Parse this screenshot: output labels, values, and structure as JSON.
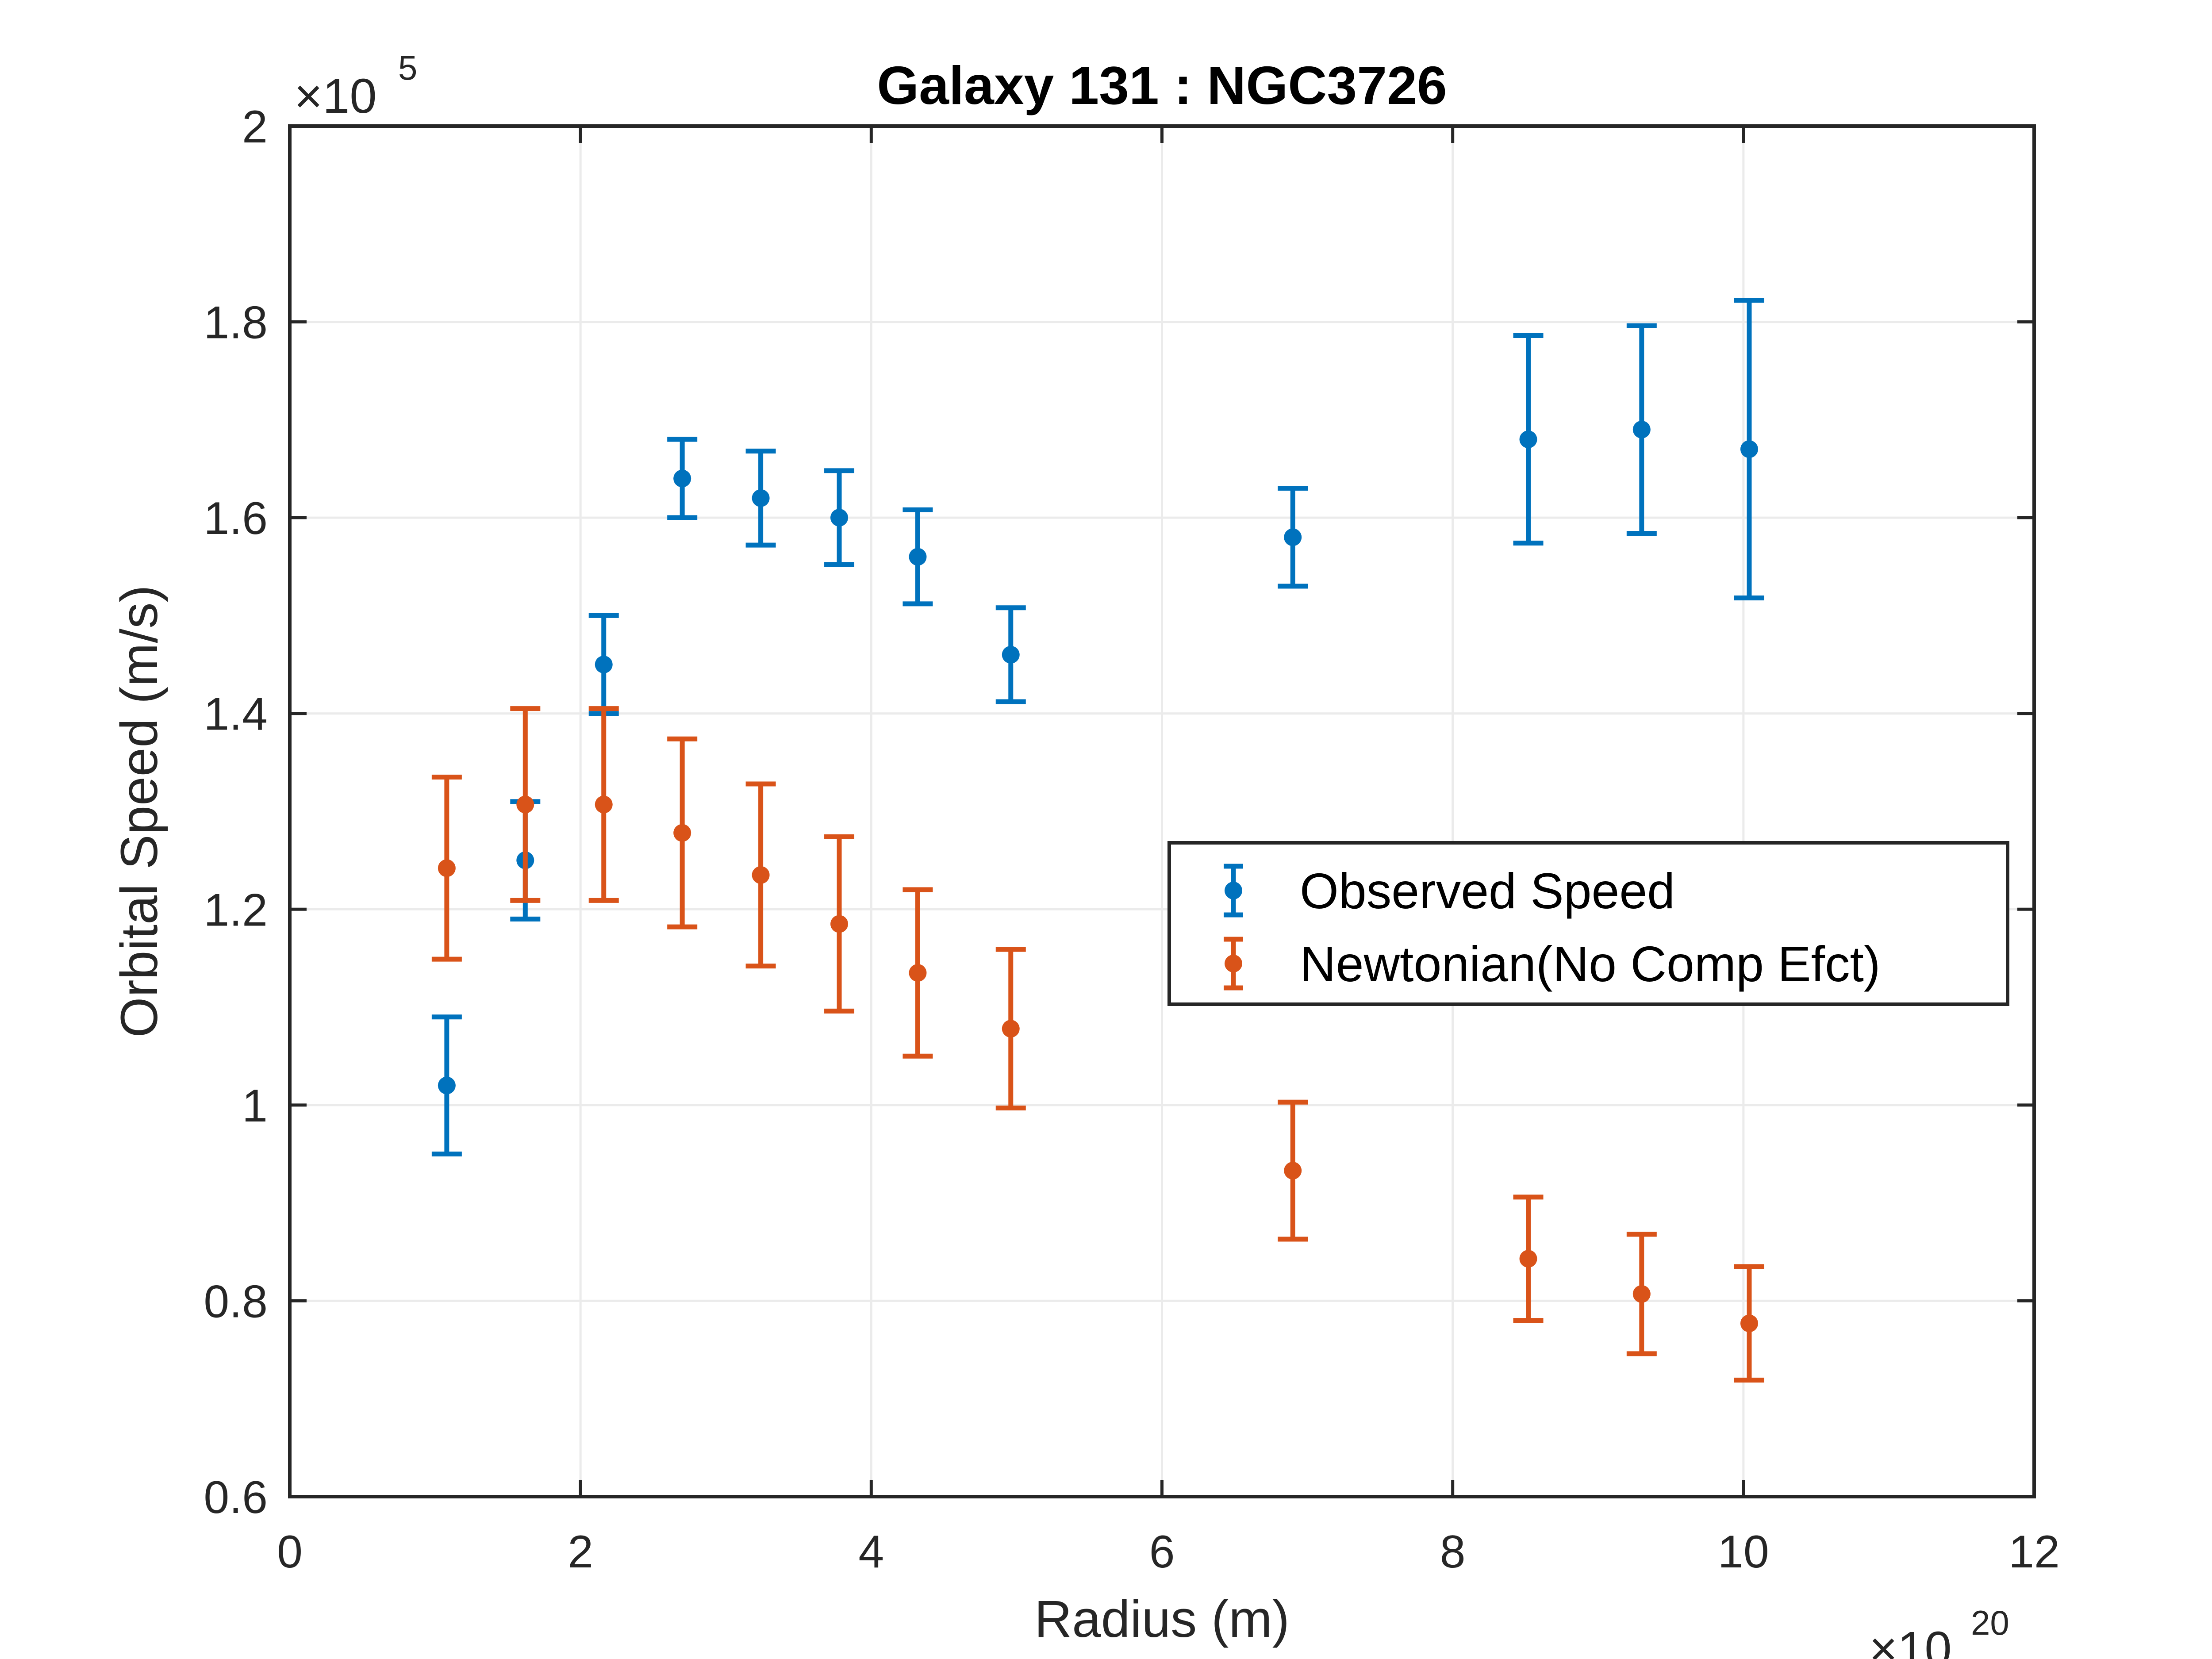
{
  "chart_data": {
    "type": "scatter",
    "title": "Galaxy 131 : NGC3726",
    "xlabel": "Radius (m)",
    "ylabel": "Orbital Speed (m/s)",
    "x_multiplier": {
      "base": "×10",
      "power": "20"
    },
    "y_multiplier": {
      "base": "×10",
      "power": "5"
    },
    "xlim": [
      0,
      12
    ],
    "ylim": [
      0.6,
      2.0
    ],
    "x_ticks": [
      0,
      2,
      4,
      6,
      8,
      10,
      12
    ],
    "x_tick_labels": [
      "0",
      "2",
      "4",
      "6",
      "8",
      "10",
      "12"
    ],
    "y_ticks": [
      0.6,
      0.8,
      1.0,
      1.2,
      1.4,
      1.6,
      1.8,
      2.0
    ],
    "y_tick_labels": [
      "0.6",
      "0.8",
      "1",
      "1.2",
      "1.4",
      "1.6",
      "1.8",
      "2"
    ],
    "grid": true,
    "legend_position": "right",
    "series": [
      {
        "name": "Observed Speed",
        "color": "#0072BD",
        "x": [
          1.08,
          1.62,
          2.16,
          2.7,
          3.24,
          3.78,
          4.32,
          4.96,
          6.9,
          8.52,
          9.3,
          10.04
        ],
        "y": [
          1.02,
          1.25,
          1.45,
          1.64,
          1.62,
          1.6,
          1.56,
          1.46,
          1.58,
          1.68,
          1.69,
          1.67
        ],
        "err": [
          0.07,
          0.06,
          0.05,
          0.04,
          0.048,
          0.048,
          0.048,
          0.048,
          0.05,
          0.106,
          0.106,
          0.152
        ]
      },
      {
        "name": "Newtonian(No Comp Efct)",
        "color": "#D95319",
        "x": [
          1.08,
          1.62,
          2.16,
          2.7,
          3.24,
          3.78,
          4.32,
          4.96,
          6.9,
          8.52,
          9.3,
          10.04
        ],
        "y": [
          1.242,
          1.307,
          1.307,
          1.278,
          1.235,
          1.185,
          1.135,
          1.078,
          0.933,
          0.843,
          0.807,
          0.777
        ],
        "err": [
          0.093,
          0.098,
          0.098,
          0.096,
          0.093,
          0.089,
          0.085,
          0.081,
          0.07,
          0.063,
          0.061,
          0.058
        ]
      }
    ]
  }
}
